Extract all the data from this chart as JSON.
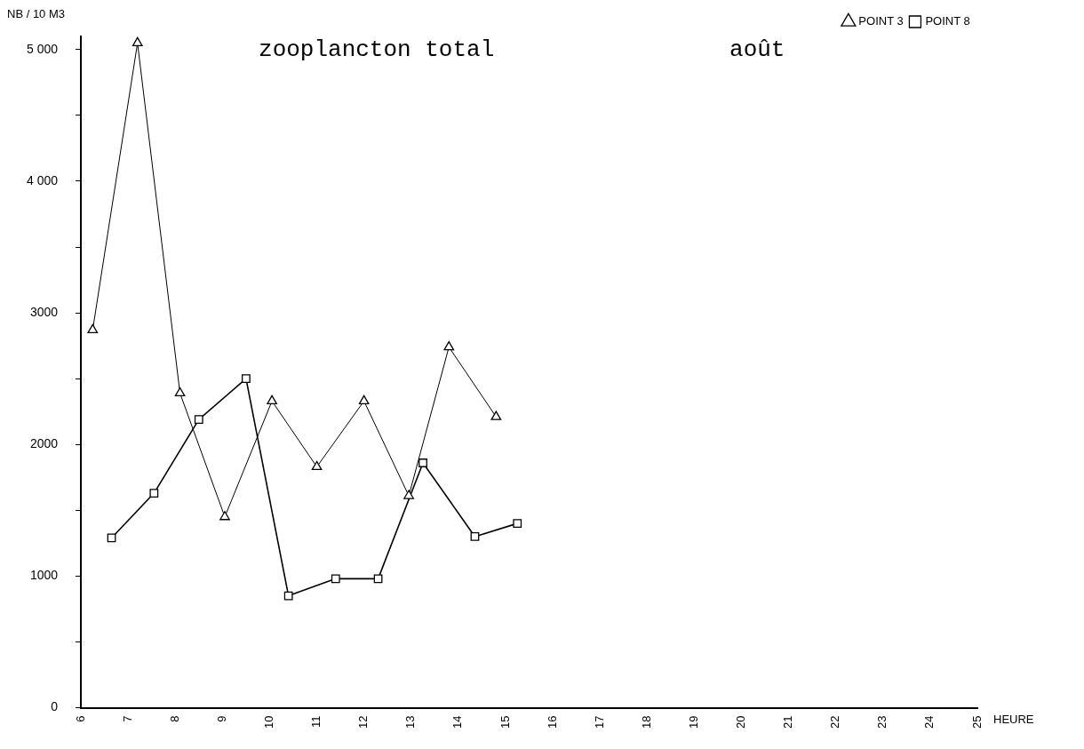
{
  "chart_data": {
    "type": "line",
    "title": "zooplancton total",
    "annotations": [
      "août"
    ],
    "xlabel": "HEURE",
    "ylabel": "NB / 10 M3",
    "xlim": [
      6,
      25
    ],
    "xticks": [
      6,
      7,
      8,
      9,
      10,
      11,
      12,
      13,
      14,
      15,
      16,
      17,
      18,
      19,
      20,
      21,
      22,
      23,
      24,
      25
    ],
    "ylim": [
      0,
      5100
    ],
    "yticks": [
      {
        "value": 0,
        "label": "0"
      },
      {
        "value": 500,
        "label": null
      },
      {
        "value": 1000,
        "label": "1000"
      },
      {
        "value": 1500,
        "label": null
      },
      {
        "value": 2000,
        "label": "2000"
      },
      {
        "value": 2500,
        "label": null
      },
      {
        "value": 3000,
        "label": "3000"
      },
      {
        "value": 3500,
        "label": null
      },
      {
        "value": 4000,
        "label": "4 000"
      },
      {
        "value": 4500,
        "label": null
      },
      {
        "value": 5000,
        "label": "5 000"
      }
    ],
    "grid": false,
    "legend": "top right",
    "line_style": "solid",
    "series": [
      {
        "name": "POINT 3",
        "color": "#000000",
        "marker": "triangle",
        "x": [
          6.25,
          7.2,
          8.1,
          9.05,
          10.05,
          11.0,
          12.0,
          12.95,
          13.8,
          14.8
        ],
        "values": [
          2870,
          5050,
          2390,
          1450,
          2330,
          1830,
          2330,
          1610,
          2740,
          2210
        ]
      },
      {
        "name": "POINT 8",
        "color": "#000000",
        "marker": "square",
        "x": [
          6.65,
          7.55,
          8.5,
          9.5,
          10.4,
          11.4,
          12.3,
          13.25,
          14.35,
          15.25
        ],
        "values": [
          1290,
          1630,
          2190,
          2500,
          850,
          980,
          980,
          1860,
          1300,
          1400
        ]
      }
    ]
  }
}
